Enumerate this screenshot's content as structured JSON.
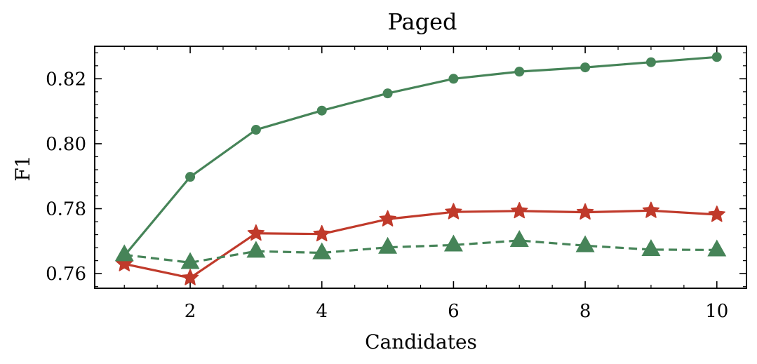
{
  "chart_data": {
    "type": "line",
    "title": "Paged",
    "xlabel": "Candidates",
    "ylabel": "F1",
    "xlim": [
      0.55,
      10.45
    ],
    "ylim": [
      0.7555,
      0.83
    ],
    "x_ticks": [
      2,
      4,
      6,
      8,
      10
    ],
    "y_ticks": [
      0.76,
      0.78,
      0.8,
      0.82
    ],
    "x_tick_labels": [
      "2",
      "4",
      "6",
      "8",
      "10"
    ],
    "y_tick_labels": [
      "0.76",
      "0.78",
      "0.80",
      "0.82"
    ],
    "grid": false,
    "x": [
      1,
      2,
      3,
      4,
      5,
      6,
      7,
      8,
      9,
      10
    ],
    "series": [
      {
        "color": "#468458",
        "marker": "circle",
        "linestyle": "solid",
        "values": [
          0.7655,
          0.7898,
          0.8043,
          0.8102,
          0.8155,
          0.82,
          0.8222,
          0.8235,
          0.8251,
          0.8267
        ]
      },
      {
        "color": "#C03A2B",
        "marker": "star",
        "linestyle": "solid",
        "values": [
          0.763,
          0.7587,
          0.7724,
          0.7722,
          0.7768,
          0.779,
          0.7793,
          0.7789,
          0.7794,
          0.7782
        ]
      },
      {
        "color": "#468458",
        "marker": "triangle",
        "linestyle": "dashed",
        "values": [
          0.7658,
          0.7634,
          0.7669,
          0.7664,
          0.7681,
          0.7688,
          0.7702,
          0.7686,
          0.7674,
          0.7673
        ]
      }
    ]
  }
}
